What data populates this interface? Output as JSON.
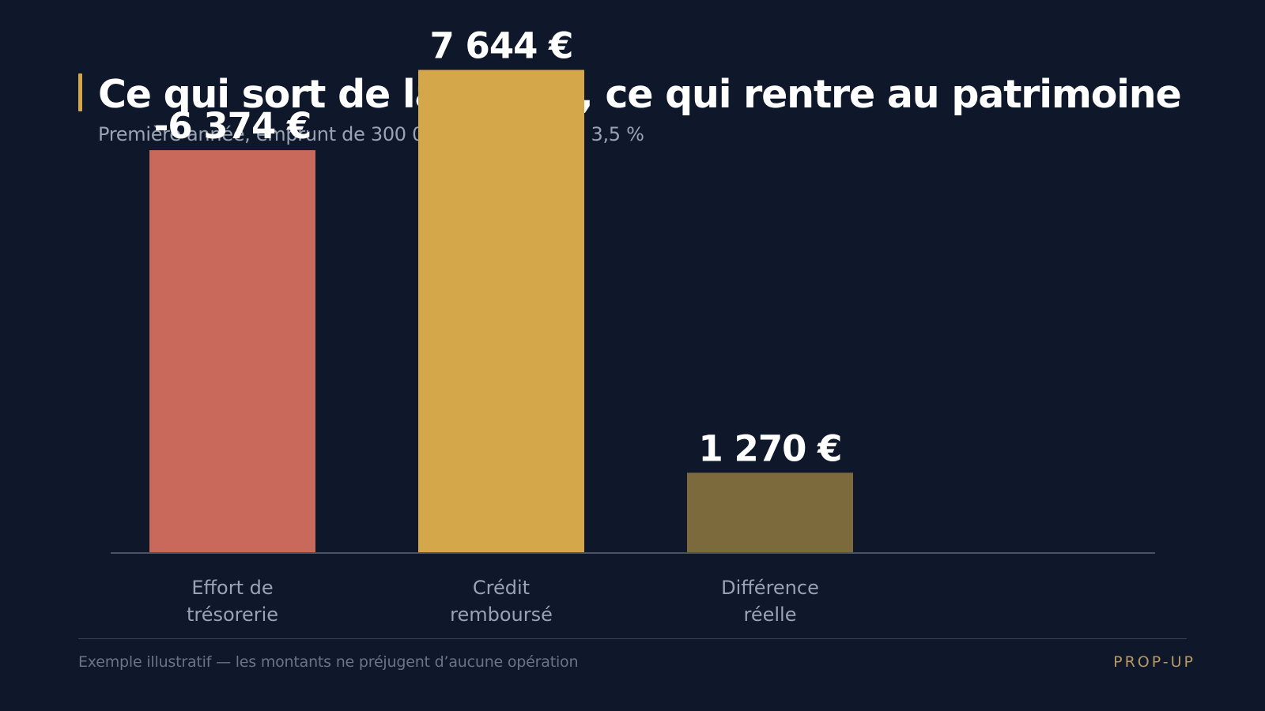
{
  "header": {
    "title": "Ce qui sort de la poche, ce qui rentre au patrimoine",
    "subtitle": "Première année, emprunt de 300 000 € sur 25 ans à 3,5 %"
  },
  "chart_data": {
    "type": "bar",
    "categories": [
      [
        "Effort de",
        "trésorerie"
      ],
      [
        "Crédit",
        "remboursé"
      ],
      [
        "Différence",
        "réelle"
      ]
    ],
    "values": [
      -6374,
      7644,
      1270
    ],
    "value_labels": [
      "-6 374 €",
      "7 644 €",
      "1 270 €"
    ],
    "colors": [
      "#c8695c",
      "#d4a84a",
      "#7d6a3c"
    ],
    "ylim": [
      0,
      8000
    ]
  },
  "footer": {
    "note": "Exemple illustratif — les montants ne préjugent d’aucune opération",
    "brand": "PROP-UP"
  }
}
